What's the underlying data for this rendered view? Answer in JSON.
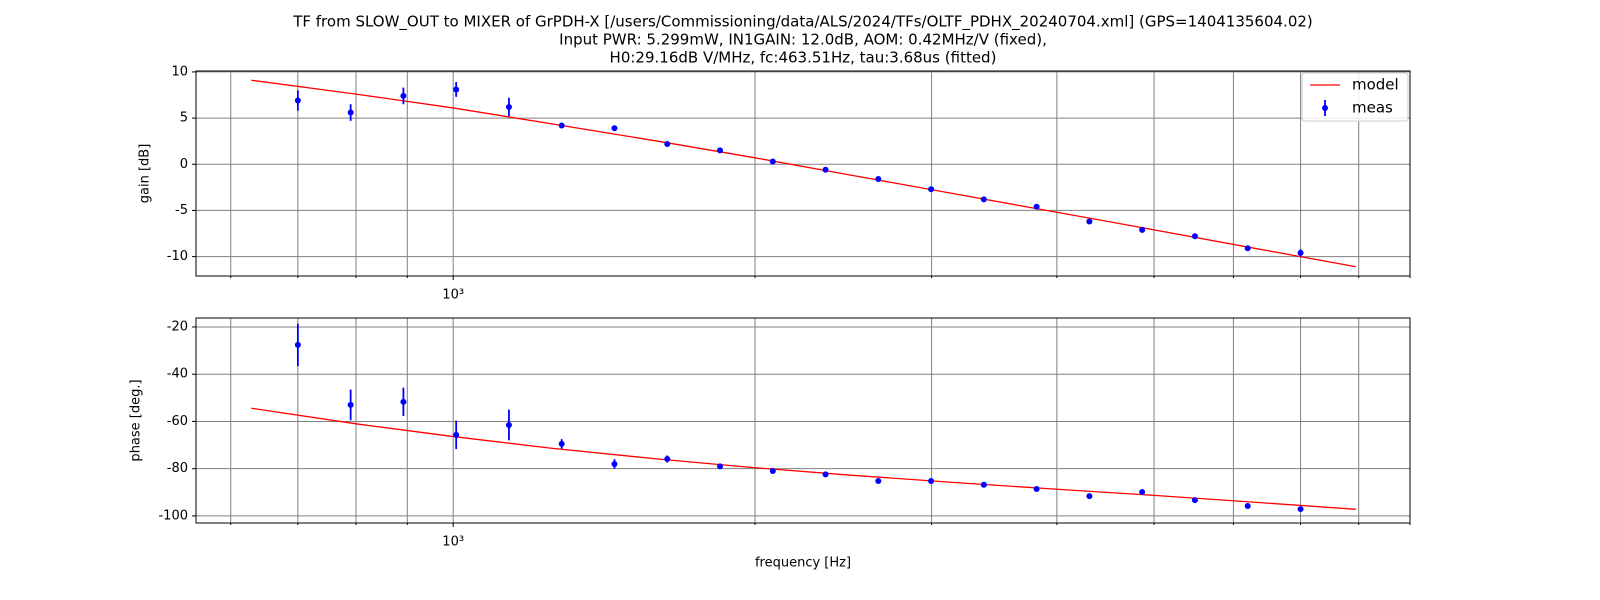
{
  "chart_data": [
    {
      "type": "line",
      "title": [
        "TF from SLOW_OUT to MIXER of GrPDH-X [/users/Commissioning/data/ALS/2024/TFs/OLTF_PDHX_20240704.xml] (GPS=1404135604.02)",
        "Input PWR: 5.299mW,   IN1GAIN: 12.0dB,   AOM: 0.42MHz/V (fixed),",
        "H0:29.16dB V/MHz,   fc:463.51Hz,   tau:3.68us (fitted)"
      ],
      "ylabel": "gain [dB]",
      "xscale": "log",
      "xlim": [
        554,
        9000
      ],
      "xticks": [
        {
          "value": 1000,
          "label": "10³"
        }
      ],
      "xminorticks": [
        600,
        700,
        800,
        900,
        2000,
        3000,
        4000,
        5000,
        6000,
        7000,
        8000,
        9000
      ],
      "ylim": [
        -12.1,
        10.1
      ],
      "yticks": [
        -10,
        -5,
        0,
        5,
        10
      ],
      "grid": true,
      "legend": "upper right",
      "series": [
        {
          "name": "model",
          "type": "line",
          "color": "#ff0000",
          "x": [
            629,
            800,
            1000,
            1250,
            1600,
            2000,
            2500,
            3200,
            4000,
            5000,
            6300,
            7950
          ],
          "values": [
            9.1,
            7.6,
            6.1,
            4.4,
            2.5,
            0.7,
            -1.2,
            -3.3,
            -5.2,
            -7.1,
            -9.1,
            -11.1
          ]
        },
        {
          "name": "meas",
          "type": "errorbar",
          "color": "#0000ff",
          "x": [
            700,
            790.2,
            892,
            1006.9,
            1136.6,
            1283,
            1448.3,
            1634.9,
            1845.5,
            2083.2,
            2351.6,
            2654.5,
            2996.5,
            3382.5,
            3818.2,
            4310.1,
            4865.3,
            5492.1,
            6199.6,
            7000
          ],
          "values": [
            6.9,
            5.6,
            7.4,
            8.1,
            6.2,
            4.2,
            3.9,
            2.2,
            1.5,
            0.3,
            -0.6,
            -1.6,
            -2.7,
            -3.8,
            -4.6,
            -6.2,
            -7.1,
            -7.8,
            -9.1,
            -9.6
          ],
          "errors": [
            1.1,
            0.9,
            0.9,
            0.8,
            1.0,
            0.2,
            0.1,
            0.1,
            0.1,
            0.1,
            0.1,
            0.1,
            0.1,
            0.1,
            0.1,
            0.1,
            0.1,
            0.1,
            0.1,
            0.4
          ]
        }
      ]
    },
    {
      "type": "line",
      "ylabel": "phase [deg.]",
      "xlabel": "frequency [Hz]",
      "xscale": "log",
      "xlim": [
        554,
        9000
      ],
      "xticks": [
        {
          "value": 1000,
          "label": "10³"
        }
      ],
      "xminorticks": [
        600,
        700,
        800,
        900,
        2000,
        3000,
        4000,
        5000,
        6000,
        7000,
        8000,
        9000
      ],
      "ylim": [
        -103,
        -16.2
      ],
      "yticks": [
        -100,
        -80,
        -60,
        -40,
        -20
      ],
      "grid": true,
      "series": [
        {
          "name": "model",
          "type": "line",
          "color": "#ff0000",
          "x": [
            629,
            800,
            1000,
            1250,
            1600,
            2000,
            2500,
            3200,
            4000,
            5000,
            6300,
            7950
          ],
          "values": [
            -54.4,
            -61.0,
            -66.4,
            -71.3,
            -75.9,
            -79.6,
            -82.8,
            -86.0,
            -88.7,
            -91.3,
            -94.2,
            -97.2
          ]
        },
        {
          "name": "meas",
          "type": "errorbar",
          "color": "#0000ff",
          "x": [
            700,
            790.2,
            892,
            1006.9,
            1136.6,
            1283,
            1448.3,
            1634.9,
            1845.5,
            2083.2,
            2351.6,
            2654.5,
            2996.5,
            3382.5,
            3818.2,
            4310.1,
            4865.3,
            5492.1,
            6199.6,
            7000
          ],
          "values": [
            -27.6,
            -53.0,
            -51.7,
            -65.7,
            -61.5,
            -69.5,
            -78.0,
            -75.9,
            -79.0,
            -81.0,
            -82.4,
            -85.2,
            -85.2,
            -86.8,
            -88.6,
            -91.6,
            -89.9,
            -93.3,
            -95.8,
            -97.1
          ],
          "errors": [
            9,
            6.5,
            6,
            6,
            6.5,
            2,
            2,
            1.5,
            0.5,
            0.5,
            0.5,
            0.5,
            0.5,
            0.5,
            0.5,
            0.5,
            0.5,
            0.5,
            0.5,
            1
          ]
        }
      ]
    }
  ]
}
